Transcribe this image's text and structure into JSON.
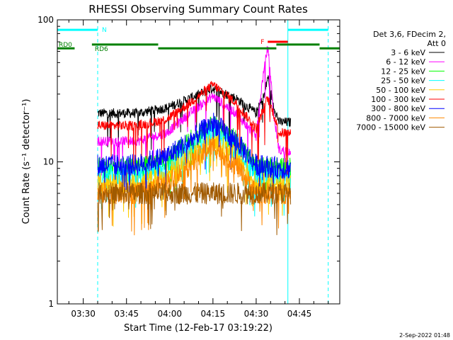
{
  "chart_data": {
    "type": "line",
    "title": "RHESSI Observing Summary Count Rates",
    "xlabel": "Start Time (12-Feb-17 03:19:22)",
    "ylabel": "Count Rate (s⁻¹ detector⁻¹)",
    "yscale": "log",
    "xlim_min": [
      22,
      120
    ],
    "ylim": [
      1,
      100
    ],
    "x_ticks": [
      {
        "min": 31,
        "label": "03:30"
      },
      {
        "min": 46,
        "label": "03:45"
      },
      {
        "min": 61,
        "label": "04:00"
      },
      {
        "min": 76,
        "label": "04:15"
      },
      {
        "min": 91,
        "label": "04:30"
      },
      {
        "min": 106,
        "label": "04:45"
      }
    ],
    "y_ticks": [
      {
        "value": 1,
        "label": "1"
      },
      {
        "value": 10,
        "label": "10"
      },
      {
        "value": 100,
        "label": "100"
      }
    ],
    "legend": {
      "header": [
        "Det 3,6, FDecim 2,",
        "Att 0"
      ],
      "position": "right"
    },
    "series": [
      {
        "name": "3 - 6 keV",
        "color": "#000000",
        "data_start": 36,
        "data_end": 103,
        "x": [
          36,
          50,
          60,
          68,
          76,
          84,
          91,
          94,
          95,
          97,
          99,
          103
        ],
        "y": [
          22,
          22,
          24,
          28,
          33,
          28,
          22,
          30,
          40,
          25,
          19,
          19
        ]
      },
      {
        "name": "6 - 12 keV",
        "color": "#ff00ff",
        "data_start": 36,
        "data_end": 103,
        "x": [
          36,
          50,
          60,
          68,
          76,
          84,
          91,
          93,
          95,
          96,
          97,
          99,
          103
        ],
        "y": [
          14,
          14,
          16,
          22,
          29,
          22,
          15,
          35,
          65,
          40,
          22,
          12,
          12
        ]
      },
      {
        "name": "12 - 25 keV",
        "color": "#00ff00",
        "data_start": 36,
        "data_end": 103,
        "x": [
          36,
          50,
          60,
          68,
          76,
          84,
          91,
          99,
          103
        ],
        "y": [
          9,
          9,
          10,
          14,
          18,
          14,
          9,
          9,
          9
        ]
      },
      {
        "name": "25 - 50 keV",
        "color": "#00ffff",
        "data_start": 36,
        "data_end": 103,
        "x": [
          36,
          50,
          60,
          68,
          76,
          84,
          91,
          99,
          103
        ],
        "y": [
          8,
          8,
          9,
          12,
          16,
          12,
          8,
          8,
          8
        ]
      },
      {
        "name": "50 - 100 keV",
        "color": "#ffcc00",
        "data_start": 36,
        "data_end": 103,
        "x": [
          36,
          50,
          60,
          68,
          76,
          84,
          91,
          99,
          103
        ],
        "y": [
          7,
          7,
          8,
          11,
          14,
          11,
          7,
          7,
          7
        ]
      },
      {
        "name": "100 - 300 keV",
        "color": "#ff0000",
        "data_start": 36,
        "data_end": 103,
        "x": [
          36,
          50,
          60,
          68,
          76,
          84,
          91,
          93,
          95,
          97,
          99,
          103
        ],
        "y": [
          18,
          18,
          20,
          26,
          35,
          26,
          17,
          22,
          28,
          22,
          16,
          16
        ]
      },
      {
        "name": "300 - 800 keV",
        "color": "#0000ff",
        "data_start": 36,
        "data_end": 103,
        "x": [
          36,
          50,
          60,
          68,
          76,
          84,
          91,
          99,
          103
        ],
        "y": [
          9.5,
          9.5,
          11,
          14,
          19,
          14,
          9.5,
          9,
          9
        ]
      },
      {
        "name": "800 - 7000 keV",
        "color": "#ff8800",
        "data_start": 36,
        "data_end": 103,
        "x": [
          36,
          50,
          60,
          68,
          76,
          84,
          91,
          99,
          103
        ],
        "y": [
          6,
          6,
          7,
          9.5,
          13,
          9.5,
          6,
          6,
          6
        ]
      },
      {
        "name": "7000 - 15000 keV",
        "color": "#a05a00",
        "data_start": 36,
        "data_end": 103,
        "x": [
          36,
          103
        ],
        "y": [
          6,
          6
        ]
      }
    ],
    "bars": [
      {
        "label": "N",
        "color": "#00ffff",
        "label_color": "#00ffff",
        "x0": 22,
        "x1": 36,
        "y": 85
      },
      {
        "label": "",
        "color": "#00ffff",
        "label_color": "#00ffff",
        "x0": 102,
        "x1": 116,
        "y": 85
      },
      {
        "label": "F",
        "color": "#ff0000",
        "label_color": "#ff0000",
        "x0": 95,
        "x1": 102,
        "y": 70
      },
      {
        "label": "RD0",
        "color": "#008000",
        "label_color": "#008000",
        "x0": 22,
        "x1": 28,
        "y": 63
      },
      {
        "label": "RD6",
        "color": "#008000",
        "label_color": "#008000",
        "x0": 34,
        "x1": 57,
        "y": 67
      },
      {
        "label": "",
        "color": "#008000",
        "label_color": "#008000",
        "x0": 57,
        "x1": 98,
        "y": 63
      },
      {
        "label": "",
        "color": "#008000",
        "label_color": "#008000",
        "x0": 98,
        "x1": 113,
        "y": 67
      },
      {
        "label": "",
        "color": "#008000",
        "label_color": "#008000",
        "x0": 113,
        "x1": 120,
        "y": 63
      }
    ],
    "vlines": [
      {
        "min": 36,
        "color": "#00ffff",
        "style": "dashed"
      },
      {
        "min": 102,
        "color": "#00ffff",
        "style": "solid"
      },
      {
        "min": 116,
        "color": "#00ffff",
        "style": "dashed"
      }
    ],
    "footer_timestamp": "2-Sep-2022 01:48"
  }
}
